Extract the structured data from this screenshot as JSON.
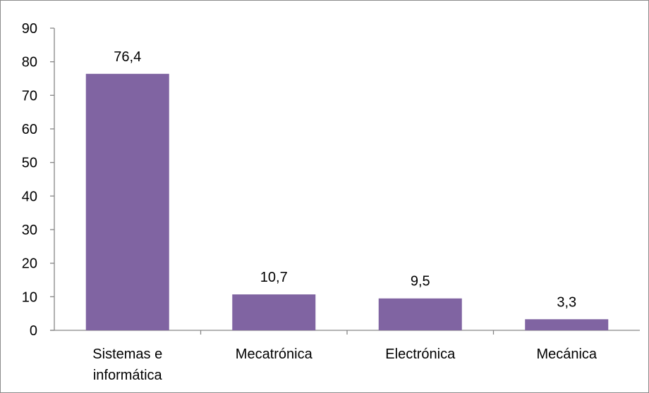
{
  "chart_data": {
    "type": "bar",
    "title": "",
    "xlabel": "",
    "ylabel": "",
    "categories": [
      [
        "Sistemas e",
        "informática"
      ],
      [
        "Mecatrónica"
      ],
      [
        "Electrónica"
      ],
      [
        "Mecánica"
      ]
    ],
    "values": [
      76.4,
      10.7,
      9.5,
      3.3
    ],
    "data_labels": [
      "76,4",
      "10,7",
      "9,5",
      "3,3"
    ],
    "ylim": [
      0,
      90
    ],
    "yticks": [
      0,
      10,
      20,
      30,
      40,
      50,
      60,
      70,
      80,
      90
    ],
    "grid": false,
    "legend": "none",
    "bar_color": "#8064a2",
    "axis_color": "#868686"
  }
}
